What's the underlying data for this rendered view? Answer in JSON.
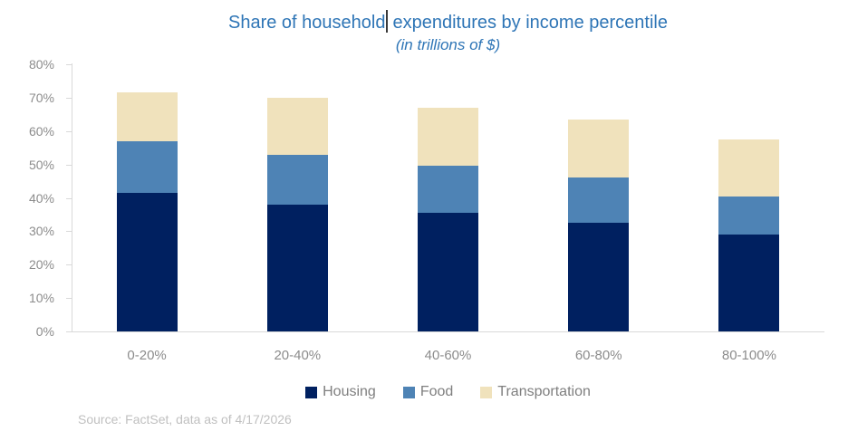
{
  "header": {
    "title_full": "Share of household expenditures by income percentile",
    "title_before_caret": "Share of household",
    "title_after_caret": "expenditures by income percentile",
    "subtitle": "(in trillions of $)",
    "title_color": "#2e75b6"
  },
  "chart_data": {
    "type": "bar",
    "stacked": true,
    "title": "Share of household expenditures by income percentile",
    "subtitle": "(in trillions of $)",
    "categories": [
      "0-20%",
      "20-40%",
      "40-60%",
      "60-80%",
      "80-100%"
    ],
    "series": [
      {
        "name": "Housing",
        "color": "#002060",
        "values": [
          41.5,
          38.0,
          35.5,
          32.5,
          29.0
        ]
      },
      {
        "name": "Food",
        "color": "#4e83b5",
        "values": [
          15.5,
          15.0,
          14.0,
          13.5,
          11.5
        ]
      },
      {
        "name": "Transportation",
        "color": "#f0e2bc",
        "values": [
          14.5,
          17.0,
          17.5,
          17.5,
          17.0
        ]
      }
    ],
    "stack_totals": [
      71.5,
      70.0,
      67.0,
      63.5,
      57.5
    ],
    "xlabel": "",
    "ylabel": "",
    "ylim": [
      0,
      80
    ],
    "ytick_labels": [
      "0%",
      "10%",
      "20%",
      "30%",
      "40%",
      "50%",
      "60%",
      "70%",
      "80%"
    ],
    "ytick_values": [
      0,
      10,
      20,
      30,
      40,
      50,
      60,
      70,
      80
    ],
    "grid": false,
    "legend_position": "bottom"
  },
  "footer": {
    "source": "Source: FactSet, data as of 4/17/2026"
  },
  "colors": {
    "axis_line": "#d9d9d9",
    "tick_label": "#8c8c8c",
    "category_label": "#8c8c8c",
    "legend_text": "#7f7f7f",
    "source_text": "#c0c0c0",
    "caret": "#3a3a3a"
  }
}
